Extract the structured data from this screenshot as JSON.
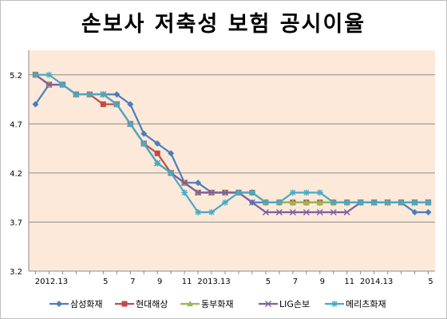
{
  "chart_data": {
    "type": "line",
    "title": "손보사 저축성 보험 공시이율",
    "xlabel": "",
    "ylabel": "",
    "x_tick_labels": [
      "2012.13",
      "5",
      "7",
      "9",
      "11",
      "2013.13",
      "5",
      "7",
      "9",
      "11",
      "2014.13",
      "5"
    ],
    "x_tick_positions": [
      1,
      5,
      7,
      9,
      11,
      13,
      17,
      19,
      21,
      23,
      25,
      29
    ],
    "y_ticks": [
      3.2,
      3.7,
      4.2,
      4.7,
      5.2
    ],
    "ylim": [
      3.2,
      5.45
    ],
    "xlim": [
      0.5,
      30.5
    ],
    "grid": true,
    "legend_position": "bottom",
    "background_color": "#fde9d9",
    "series": [
      {
        "name": "삼성화재",
        "color": "#4a7ebb",
        "marker": "diamond",
        "x": [
          1,
          2,
          3,
          4,
          5,
          6,
          7,
          8,
          9,
          10,
          11,
          12,
          13,
          14,
          15,
          16,
          17,
          18,
          19,
          20,
          21,
          22,
          23,
          24,
          25,
          26,
          27,
          28,
          29,
          30
        ],
        "values": [
          4.9,
          5.1,
          5.1,
          5.0,
          5.0,
          5.0,
          5.0,
          4.9,
          4.6,
          4.5,
          4.4,
          4.1,
          4.1,
          4.0,
          4.0,
          4.0,
          3.9,
          3.9,
          3.9,
          3.9,
          3.9,
          3.9,
          3.9,
          3.9,
          3.9,
          3.9,
          3.9,
          3.9,
          3.8,
          3.8
        ]
      },
      {
        "name": "현대해상",
        "color": "#be4b48",
        "marker": "square",
        "x": [
          1,
          2,
          3,
          4,
          5,
          6,
          7,
          8,
          9,
          10,
          11,
          12,
          13,
          14,
          15,
          16,
          17,
          18,
          19,
          20,
          21,
          22,
          23,
          24,
          25,
          26,
          27,
          28,
          29,
          30
        ],
        "values": [
          5.2,
          5.1,
          5.1,
          5.0,
          5.0,
          4.9,
          4.9,
          4.7,
          4.5,
          4.4,
          4.2,
          4.1,
          4.0,
          4.0,
          4.0,
          4.0,
          4.0,
          3.9,
          3.9,
          3.9,
          3.9,
          3.9,
          3.9,
          3.9,
          3.9,
          3.9,
          3.9,
          3.9,
          3.9,
          3.9
        ]
      },
      {
        "name": "동부화재",
        "color": "#98b954",
        "marker": "triangle",
        "x": [
          1,
          2,
          3,
          4,
          5,
          6,
          7,
          8,
          9,
          10,
          11,
          12,
          13,
          14,
          15,
          16,
          17,
          18,
          19,
          20,
          21,
          22,
          23,
          24,
          25,
          26,
          27,
          28,
          29,
          30
        ],
        "values": [
          5.2,
          5.1,
          5.1,
          5.0,
          5.0,
          5.0,
          4.9,
          4.7,
          4.5,
          4.3,
          4.2,
          4.1,
          4.0,
          4.0,
          4.0,
          4.0,
          4.0,
          3.9,
          3.9,
          3.9,
          3.9,
          3.9,
          3.9,
          3.9,
          3.9,
          3.9,
          3.9,
          3.9,
          3.9,
          3.9
        ]
      },
      {
        "name": "LIG손보",
        "color": "#7d5fa0",
        "marker": "x",
        "x": [
          1,
          2,
          3,
          4,
          5,
          6,
          7,
          8,
          9,
          10,
          11,
          12,
          13,
          14,
          15,
          16,
          17,
          18,
          19,
          20,
          21,
          22,
          23,
          24,
          25,
          26,
          27,
          28,
          29,
          30
        ],
        "values": [
          5.2,
          5.1,
          5.1,
          5.0,
          5.0,
          5.0,
          4.9,
          4.7,
          4.5,
          4.3,
          4.2,
          4.1,
          4.0,
          4.0,
          4.0,
          4.0,
          3.9,
          3.8,
          3.8,
          3.8,
          3.8,
          3.8,
          3.8,
          3.8,
          3.9,
          3.9,
          3.9,
          3.9,
          3.9,
          3.9
        ]
      },
      {
        "name": "메리츠화재",
        "color": "#46aac5",
        "marker": "star",
        "x": [
          1,
          2,
          3,
          4,
          5,
          6,
          7,
          8,
          9,
          10,
          11,
          12,
          13,
          14,
          15,
          16,
          17,
          18,
          19,
          20,
          21,
          22,
          23,
          24,
          25,
          26,
          27,
          28,
          29,
          30
        ],
        "values": [
          5.2,
          5.2,
          5.1,
          5.0,
          5.0,
          5.0,
          4.9,
          4.7,
          4.5,
          4.3,
          4.2,
          4.0,
          3.8,
          3.8,
          3.9,
          4.0,
          4.0,
          3.9,
          3.9,
          4.0,
          4.0,
          4.0,
          3.9,
          3.9,
          3.9,
          3.9,
          3.9,
          3.9,
          3.9,
          3.9
        ]
      }
    ]
  }
}
